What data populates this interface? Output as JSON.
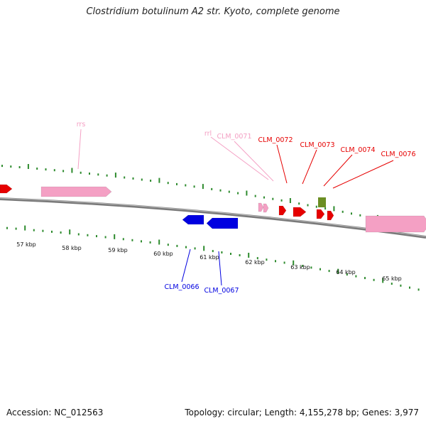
{
  "title": "Clostridium botulinum A2 str. Kyoto, complete genome",
  "footer": {
    "accession": "Accession: NC_012563",
    "summary": "Topology: circular; Length: 4,155,278 bp; Genes: 3,977"
  },
  "colors": {
    "backbone": "#7a7a7a",
    "tick": "#2e8b2e",
    "forward_gene": "#e60000",
    "reverse_gene": "#0000e0",
    "rna": "#f4a0c4",
    "other": "#6b8e23"
  },
  "scale": {
    "labels": [
      "57 kbp",
      "58 kbp",
      "59 kbp",
      "60 kbp",
      "61 kbp",
      "62 kbp",
      "63 kbp",
      "64 kbp",
      "65 kbp"
    ]
  },
  "features": [
    {
      "name": "CLM_0066",
      "strand": "reverse",
      "type": "gene"
    },
    {
      "name": "CLM_0067",
      "strand": "reverse",
      "type": "gene"
    },
    {
      "name": "rrs",
      "strand": "forward",
      "type": "rna"
    },
    {
      "name": "rrl",
      "strand": "forward",
      "type": "rna"
    },
    {
      "name": "CLM_0071",
      "strand": "forward",
      "type": "rna"
    },
    {
      "name": "CLM_0072",
      "strand": "forward",
      "type": "gene"
    },
    {
      "name": "CLM_0073",
      "strand": "forward",
      "type": "gene"
    },
    {
      "name": "CLM_0074",
      "strand": "forward",
      "type": "gene"
    },
    {
      "name": "CLM_0076",
      "strand": "forward",
      "type": "gene"
    }
  ]
}
